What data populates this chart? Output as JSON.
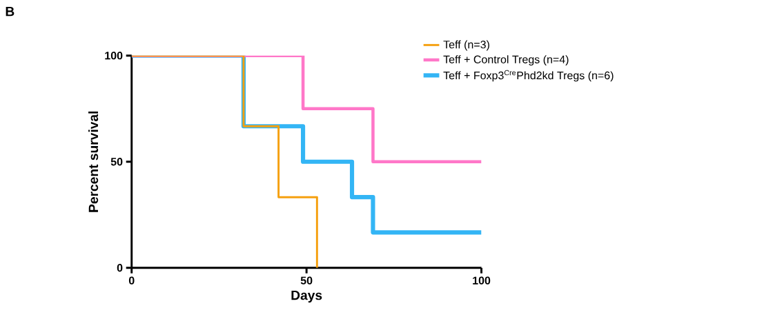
{
  "chart_data": {
    "type": "step",
    "xlabel": "Days",
    "ylabel": "Percent survival",
    "annotations": [
      "B"
    ],
    "xlim": [
      0,
      100
    ],
    "ylim": [
      0,
      100
    ],
    "xticks": [
      0,
      50,
      100
    ],
    "yticks": [
      0,
      50,
      100
    ],
    "grid": false,
    "legend": "top right",
    "series": [
      {
        "name": "Teff + Foxp3$^{Cre}$Phd2kd Tregs (n=6)",
        "color": "#33b5f5",
        "x": [
          0,
          32,
          49,
          63,
          69,
          100
        ],
        "values": [
          100,
          66.7,
          50,
          33.3,
          16.7,
          16.7
        ]
      },
      {
        "name": "Teff + Control Tregs (n=4)",
        "color": "#ff77c8",
        "x": [
          0,
          49,
          69,
          100
        ],
        "values": [
          100,
          75,
          50,
          50
        ]
      },
      {
        "name": "Teff (n=3)",
        "color": "#f5a00f",
        "x": [
          0,
          32,
          42,
          53
        ],
        "values": [
          100,
          66.7,
          33.3,
          0
        ]
      }
    ]
  }
}
